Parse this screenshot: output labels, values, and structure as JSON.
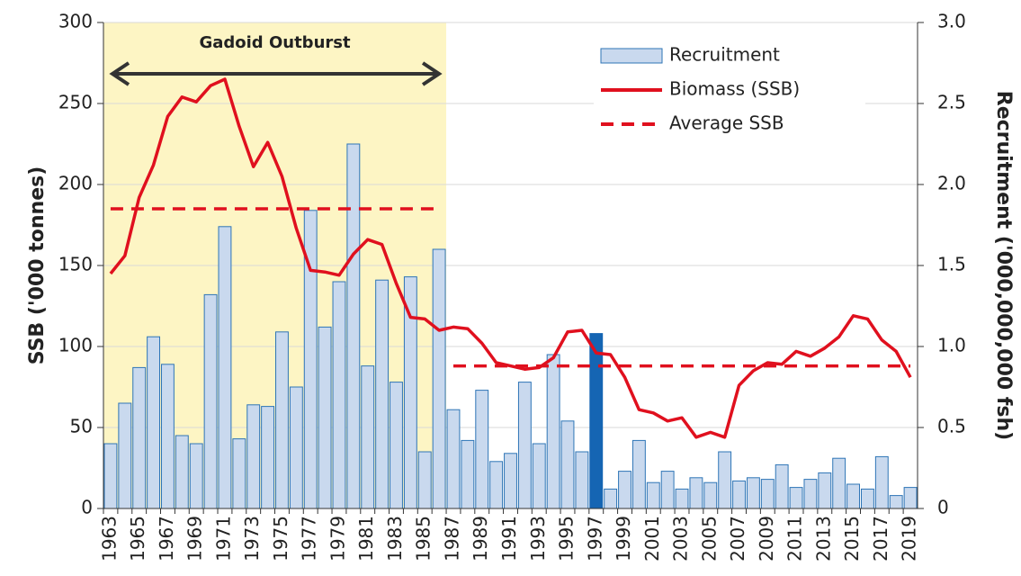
{
  "chart_data": {
    "type": "bar-line",
    "y_label": "SSB ('000 tonnes)",
    "y2_label": "Recruitment ('000,000,000 fsh)",
    "categories": [
      "1963",
      null,
      "1965",
      null,
      "1967",
      null,
      "1969",
      null,
      "1971",
      null,
      "1973",
      null,
      "1975",
      null,
      "1977",
      null,
      "1979",
      null,
      "1981",
      null,
      "1983",
      null,
      "1985",
      null,
      "1987",
      null,
      "1989",
      null,
      "1991",
      null,
      "1993",
      null,
      "1995",
      null,
      "1997",
      null,
      "1999",
      null,
      "2001",
      null,
      "2003",
      null,
      "2005",
      null,
      "2007",
      null,
      "2009",
      null,
      "2011",
      null,
      "2013",
      null,
      "2015",
      null,
      "2017",
      null,
      "2019"
    ],
    "ylim": [
      0,
      300
    ],
    "yticks": [
      0,
      50,
      100,
      150,
      200,
      250,
      300
    ],
    "y2lim": [
      0,
      3
    ],
    "y2ticks": [
      0,
      0.5,
      {
        "value": 1,
        "label": "1.0"
      },
      1.5,
      {
        "value": 2,
        "label": "2.0"
      },
      2.5,
      {
        "value": 3,
        "label": "3.0"
      }
    ],
    "grid": true,
    "legend": "top-right",
    "highlight": "1997",
    "highlight_color": "#1565b3",
    "shaded_range": [
      "1963",
      "1987"
    ],
    "shade_color": "#fdf5c4",
    "annotation": "Gadoid Outburst",
    "series": [
      {
        "name": "Recruitment",
        "type": "bar",
        "axis": "y2",
        "color": "#c9d9ee",
        "edge": "#2e75b6",
        "values": [
          0.4,
          0.65,
          0.87,
          1.06,
          0.89,
          0.45,
          0.4,
          1.32,
          1.74,
          0.43,
          0.64,
          0.63,
          1.09,
          0.75,
          1.84,
          1.12,
          1.4,
          2.25,
          0.88,
          1.41,
          0.78,
          1.43,
          0.35,
          1.6,
          0.61,
          0.42,
          0.73,
          0.29,
          0.34,
          0.78,
          0.4,
          0.95,
          0.54,
          0.35,
          1.08,
          0.12,
          0.23,
          0.42,
          0.16,
          0.23,
          0.12,
          0.19,
          0.16,
          0.35,
          0.17,
          0.19,
          0.18,
          0.27,
          0.13,
          0.18,
          0.22,
          0.31,
          0.15,
          0.12,
          0.32,
          0.08,
          0.13
        ]
      },
      {
        "name": "Biomass (SSB)",
        "type": "line",
        "color": "#e0101e",
        "values": [
          145,
          156,
          192,
          212,
          242,
          254,
          251,
          261,
          265,
          236,
          211,
          226,
          205,
          173,
          147,
          146,
          144,
          157,
          166,
          163,
          139,
          118,
          117,
          110,
          112,
          111,
          102,
          90,
          88,
          86,
          87,
          93,
          109,
          110,
          96,
          95,
          81,
          61,
          59,
          54,
          56,
          44,
          47,
          44,
          76,
          85,
          90,
          89,
          97,
          94,
          99,
          106,
          119,
          117,
          104,
          97,
          81
        ]
      },
      {
        "name": "Average SSB",
        "type": "dashed",
        "color": "#e0101e",
        "values": [
          185,
          185,
          185,
          185,
          185,
          185,
          185,
          185,
          185,
          185,
          185,
          185,
          185,
          185,
          185,
          185,
          185,
          185,
          185,
          185,
          185,
          185,
          185,
          185,
          88,
          88,
          88,
          88,
          88,
          88,
          88,
          88,
          88,
          88,
          88,
          88,
          88,
          88,
          88,
          88,
          88,
          88,
          88,
          88,
          88,
          88,
          88,
          88,
          88,
          88,
          88,
          88,
          88,
          88,
          88,
          88,
          88
        ]
      }
    ]
  }
}
